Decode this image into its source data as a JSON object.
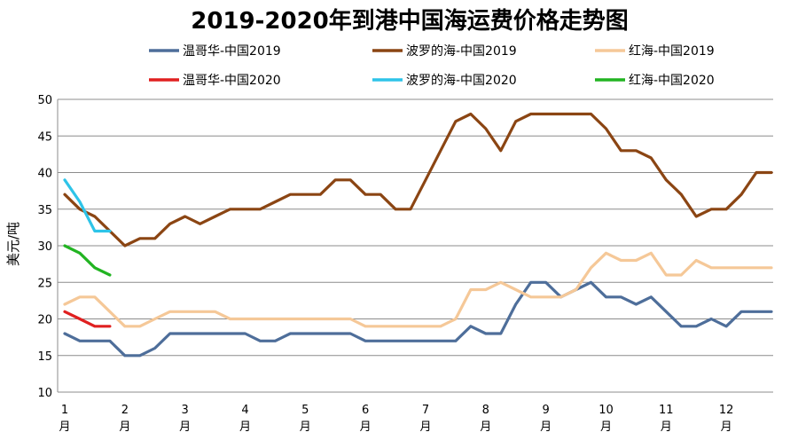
{
  "chart_data": {
    "type": "line",
    "title": "2019-2020年到港中国海运费价格走势图",
    "ylabel": "美元/吨",
    "xlabel": "",
    "ylim": [
      10,
      50
    ],
    "yticks": [
      10,
      15,
      20,
      25,
      30,
      35,
      40,
      45,
      50
    ],
    "xlim": [
      1,
      12.75
    ],
    "month_ticks": [
      {
        "num": "1",
        "unit": "月",
        "x": 1
      },
      {
        "num": "2",
        "unit": "月",
        "x": 2
      },
      {
        "num": "3",
        "unit": "月",
        "x": 3
      },
      {
        "num": "4",
        "unit": "月",
        "x": 4
      },
      {
        "num": "5",
        "unit": "月",
        "x": 5
      },
      {
        "num": "6",
        "unit": "月",
        "x": 6
      },
      {
        "num": "7",
        "unit": "月",
        "x": 7
      },
      {
        "num": "8",
        "unit": "月",
        "x": 8
      },
      {
        "num": "9",
        "unit": "月",
        "x": 9
      },
      {
        "num": "10",
        "unit": "月",
        "x": 10
      },
      {
        "num": "11",
        "unit": "月",
        "x": 11
      },
      {
        "num": "12",
        "unit": "月",
        "x": 12
      }
    ],
    "grid": true,
    "legend": "top",
    "series": [
      {
        "name": "温哥华-中国2019",
        "color": "#4e6e9a",
        "x": [
          1,
          1.25,
          1.5,
          1.75,
          2,
          2.25,
          2.5,
          2.75,
          3,
          3.25,
          3.5,
          3.75,
          4,
          4.25,
          4.5,
          4.75,
          5,
          5.25,
          5.5,
          5.75,
          6,
          6.25,
          6.5,
          6.75,
          7,
          7.25,
          7.5,
          7.75,
          8,
          8.25,
          8.5,
          8.75,
          9,
          9.25,
          9.5,
          9.75,
          10,
          10.25,
          10.5,
          10.75,
          11,
          11.25,
          11.5,
          11.75,
          12,
          12.25,
          12.5,
          12.75
        ],
        "values": [
          18,
          17,
          17,
          17,
          15,
          15,
          16,
          18,
          18,
          18,
          18,
          18,
          18,
          17,
          17,
          18,
          18,
          18,
          18,
          18,
          17,
          17,
          17,
          17,
          17,
          17,
          17,
          19,
          18,
          18,
          22,
          25,
          25,
          23,
          24,
          25,
          23,
          23,
          22,
          23,
          21,
          19,
          19,
          20,
          19,
          21,
          21,
          21
        ]
      },
      {
        "name": "波罗的海-中国2019",
        "color": "#8b4513",
        "x": [
          1,
          1.25,
          1.5,
          1.75,
          2,
          2.25,
          2.5,
          2.75,
          3,
          3.25,
          3.5,
          3.75,
          4,
          4.25,
          4.5,
          4.75,
          5,
          5.25,
          5.5,
          5.75,
          6,
          6.25,
          6.5,
          6.75,
          7,
          7.25,
          7.5,
          7.75,
          8,
          8.25,
          8.5,
          8.75,
          9,
          9.25,
          9.5,
          9.75,
          10,
          10.25,
          10.5,
          10.75,
          11,
          11.25,
          11.5,
          11.75,
          12,
          12.25,
          12.5,
          12.75
        ],
        "values": [
          37,
          35,
          34,
          32,
          30,
          31,
          31,
          33,
          34,
          33,
          34,
          35,
          35,
          35,
          36,
          37,
          37,
          37,
          39,
          39,
          37,
          37,
          35,
          35,
          39,
          43,
          47,
          48,
          46,
          43,
          47,
          48,
          48,
          48,
          48,
          48,
          46,
          43,
          43,
          42,
          39,
          37,
          34,
          35,
          35,
          37,
          40,
          40
        ]
      },
      {
        "name": "红海-中国2019",
        "color": "#f5c898",
        "x": [
          1,
          1.25,
          1.5,
          1.75,
          2,
          2.25,
          2.5,
          2.75,
          3,
          3.25,
          3.5,
          3.75,
          4,
          4.25,
          4.5,
          4.75,
          5,
          5.25,
          5.5,
          5.75,
          6,
          6.25,
          6.5,
          6.75,
          7,
          7.25,
          7.5,
          7.75,
          8,
          8.25,
          8.5,
          8.75,
          9,
          9.25,
          9.5,
          9.75,
          10,
          10.25,
          10.5,
          10.75,
          11,
          11.25,
          11.5,
          11.75,
          12,
          12.25,
          12.5,
          12.75
        ],
        "values": [
          22,
          23,
          23,
          21,
          19,
          19,
          20,
          21,
          21,
          21,
          21,
          20,
          20,
          20,
          20,
          20,
          20,
          20,
          20,
          20,
          19,
          19,
          19,
          19,
          19,
          19,
          20,
          24,
          24,
          25,
          24,
          23,
          23,
          23,
          24,
          27,
          29,
          28,
          28,
          29,
          26,
          26,
          28,
          27,
          27,
          27,
          27,
          27
        ]
      },
      {
        "name": "温哥华-中国2020",
        "color": "#e02020",
        "x": [
          1,
          1.25,
          1.5,
          1.75
        ],
        "values": [
          21,
          20,
          19,
          19
        ]
      },
      {
        "name": "波罗的海-中国2020",
        "color": "#2ec4e8",
        "x": [
          1,
          1.25,
          1.5,
          1.75
        ],
        "values": [
          39,
          36,
          32,
          32
        ]
      },
      {
        "name": "红海-中国2020",
        "color": "#22b422",
        "x": [
          1,
          1.25,
          1.5,
          1.75
        ],
        "values": [
          30,
          29,
          27,
          26
        ]
      }
    ]
  }
}
